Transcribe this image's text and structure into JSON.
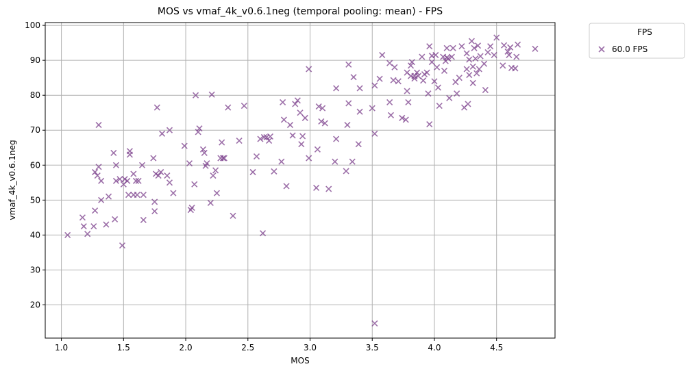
{
  "chart_data": {
    "type": "scatter",
    "title": "MOS vs vmaf_4k_v0.6.1neg (temporal pooling: mean) - FPS",
    "xlabel": "MOS",
    "ylabel": "vmaf_4k_v0.6.1neg",
    "xlim": [
      0.87,
      4.97
    ],
    "ylim": [
      10.5,
      100.8
    ],
    "xticks": [
      "1.0",
      "1.5",
      "2.0",
      "2.5",
      "3.0",
      "3.5",
      "4.0",
      "4.5"
    ],
    "yticks": [
      "20",
      "30",
      "40",
      "50",
      "60",
      "70",
      "80",
      "90",
      "100"
    ],
    "grid": true,
    "legend": {
      "title": "FPS",
      "placement": "outside-top-right"
    },
    "series": [
      {
        "name": "60.0 FPS",
        "color": "#7b3f8c",
        "marker": "x",
        "points": [
          [
            1.05,
            40
          ],
          [
            1.17,
            45
          ],
          [
            1.18,
            42.5
          ],
          [
            1.21,
            40.3
          ],
          [
            1.26,
            42.5
          ],
          [
            1.27,
            47
          ],
          [
            1.27,
            58
          ],
          [
            1.29,
            57
          ],
          [
            1.3,
            59.5
          ],
          [
            1.3,
            71.5
          ],
          [
            1.32,
            55.5
          ],
          [
            1.32,
            50
          ],
          [
            1.36,
            43
          ],
          [
            1.38,
            51
          ],
          [
            1.42,
            63.5
          ],
          [
            1.43,
            44.5
          ],
          [
            1.44,
            60
          ],
          [
            1.44,
            55.5
          ],
          [
            1.47,
            56
          ],
          [
            1.49,
            37
          ],
          [
            1.5,
            54.5
          ],
          [
            1.51,
            56
          ],
          [
            1.53,
            55.5
          ],
          [
            1.54,
            51.5
          ],
          [
            1.55,
            64
          ],
          [
            1.55,
            63
          ],
          [
            1.58,
            51.5
          ],
          [
            1.58,
            57.5
          ],
          [
            1.6,
            55.5
          ],
          [
            1.61,
            51.5
          ],
          [
            1.62,
            55.5
          ],
          [
            1.65,
            60
          ],
          [
            1.66,
            51.5
          ],
          [
            1.66,
            44.3
          ],
          [
            1.74,
            62
          ],
          [
            1.75,
            49.5
          ],
          [
            1.75,
            46.8
          ],
          [
            1.76,
            57.5
          ],
          [
            1.77,
            76.5
          ],
          [
            1.78,
            57
          ],
          [
            1.8,
            58
          ],
          [
            1.81,
            69
          ],
          [
            1.85,
            57
          ],
          [
            1.87,
            70
          ],
          [
            1.87,
            55
          ],
          [
            1.9,
            52
          ],
          [
            1.99,
            65.5
          ],
          [
            2.03,
            60.5
          ],
          [
            2.04,
            47.2
          ],
          [
            2.05,
            47.8
          ],
          [
            2.07,
            54.5
          ],
          [
            2.08,
            80
          ],
          [
            2.1,
            69.5
          ],
          [
            2.11,
            70.5
          ],
          [
            2.14,
            64.5
          ],
          [
            2.15,
            63.5
          ],
          [
            2.16,
            59.8
          ],
          [
            2.17,
            60.5
          ],
          [
            2.2,
            49.2
          ],
          [
            2.21,
            80.2
          ],
          [
            2.22,
            57
          ],
          [
            2.24,
            58.5
          ],
          [
            2.25,
            52
          ],
          [
            2.28,
            62
          ],
          [
            2.29,
            66.5
          ],
          [
            2.3,
            62
          ],
          [
            2.31,
            62
          ],
          [
            2.34,
            76.5
          ],
          [
            2.38,
            45.5
          ],
          [
            2.43,
            67
          ],
          [
            2.47,
            77
          ],
          [
            2.54,
            58
          ],
          [
            2.57,
            62.5
          ],
          [
            2.6,
            67.5
          ],
          [
            2.62,
            40.5
          ],
          [
            2.63,
            68
          ],
          [
            2.65,
            68
          ],
          [
            2.67,
            67
          ],
          [
            2.68,
            68.2
          ],
          [
            2.71,
            58.2
          ],
          [
            2.77,
            61
          ],
          [
            2.78,
            78
          ],
          [
            2.79,
            73
          ],
          [
            2.81,
            54
          ],
          [
            2.84,
            71.5
          ],
          [
            2.86,
            68.5
          ],
          [
            2.88,
            77.5
          ],
          [
            2.9,
            78.5
          ],
          [
            2.92,
            75
          ],
          [
            2.93,
            66
          ],
          [
            2.94,
            68.3
          ],
          [
            2.96,
            73.5
          ],
          [
            2.99,
            87.5
          ],
          [
            2.99,
            62
          ],
          [
            3.05,
            53.5
          ],
          [
            3.06,
            64.5
          ],
          [
            3.07,
            76.8
          ],
          [
            3.09,
            72.5
          ],
          [
            3.1,
            76.3
          ],
          [
            3.12,
            72
          ],
          [
            3.15,
            53.2
          ],
          [
            3.2,
            61
          ],
          [
            3.21,
            67.5
          ],
          [
            3.21,
            82
          ],
          [
            3.29,
            58.3
          ],
          [
            3.3,
            71.5
          ],
          [
            3.31,
            77.7
          ],
          [
            3.31,
            88.8
          ],
          [
            3.34,
            61
          ],
          [
            3.35,
            85.2
          ],
          [
            3.39,
            66
          ],
          [
            3.4,
            82
          ],
          [
            3.4,
            75.3
          ],
          [
            3.5,
            76.3
          ],
          [
            3.52,
            69
          ],
          [
            3.52,
            82.8
          ],
          [
            3.52,
            14.7
          ],
          [
            3.56,
            84.7
          ],
          [
            3.58,
            91.5
          ],
          [
            3.64,
            89.2
          ],
          [
            3.64,
            78
          ],
          [
            3.65,
            74.3
          ],
          [
            3.67,
            84.3
          ],
          [
            3.68,
            88
          ],
          [
            3.71,
            84
          ],
          [
            3.74,
            73.5
          ],
          [
            3.77,
            73
          ],
          [
            3.78,
            81.2
          ],
          [
            3.78,
            86.5
          ],
          [
            3.79,
            78
          ],
          [
            3.81,
            88.5
          ],
          [
            3.81,
            85.5
          ],
          [
            3.82,
            89.5
          ],
          [
            3.84,
            85.5
          ],
          [
            3.84,
            84.8
          ],
          [
            3.86,
            86.5
          ],
          [
            3.87,
            85.5
          ],
          [
            3.9,
            91
          ],
          [
            3.91,
            84.2
          ],
          [
            3.92,
            86
          ],
          [
            3.94,
            86.5
          ],
          [
            3.95,
            80.5
          ],
          [
            3.96,
            94
          ],
          [
            3.96,
            71.7
          ],
          [
            3.98,
            91.3
          ],
          [
            3.98,
            89.5
          ],
          [
            4,
            84
          ],
          [
            4.01,
            91.5
          ],
          [
            4.02,
            88
          ],
          [
            4.03,
            82.2
          ],
          [
            4.04,
            77
          ],
          [
            4.07,
            91
          ],
          [
            4.08,
            87
          ],
          [
            4.09,
            89.8
          ],
          [
            4.1,
            93.5
          ],
          [
            4.1,
            90.8
          ],
          [
            4.11,
            90.5
          ],
          [
            4.12,
            79.2
          ],
          [
            4.14,
            91
          ],
          [
            4.15,
            93.5
          ],
          [
            4.17,
            83.8
          ],
          [
            4.18,
            80.5
          ],
          [
            4.2,
            85
          ],
          [
            4.22,
            94
          ],
          [
            4.24,
            76.5
          ],
          [
            4.26,
            92
          ],
          [
            4.26,
            87.5
          ],
          [
            4.27,
            77.5
          ],
          [
            4.28,
            90.2
          ],
          [
            4.28,
            85.8
          ],
          [
            4.3,
            95.5
          ],
          [
            4.31,
            88.2
          ],
          [
            4.31,
            83.5
          ],
          [
            4.32,
            93.5
          ],
          [
            4.33,
            90.5
          ],
          [
            4.34,
            86.3
          ],
          [
            4.35,
            94.2
          ],
          [
            4.36,
            87.5
          ],
          [
            4.37,
            91.2
          ],
          [
            4.4,
            89
          ],
          [
            4.41,
            81.5
          ],
          [
            4.43,
            92.3
          ],
          [
            4.45,
            94
          ],
          [
            4.48,
            91.5
          ],
          [
            4.5,
            96.5
          ],
          [
            4.55,
            88.5
          ],
          [
            4.56,
            94.3
          ],
          [
            4.59,
            92.5
          ],
          [
            4.6,
            91.5
          ],
          [
            4.61,
            93.7
          ],
          [
            4.62,
            87.8
          ],
          [
            4.65,
            87.7
          ],
          [
            4.66,
            91
          ],
          [
            4.67,
            94.5
          ],
          [
            4.81,
            93.3
          ]
        ]
      }
    ]
  }
}
